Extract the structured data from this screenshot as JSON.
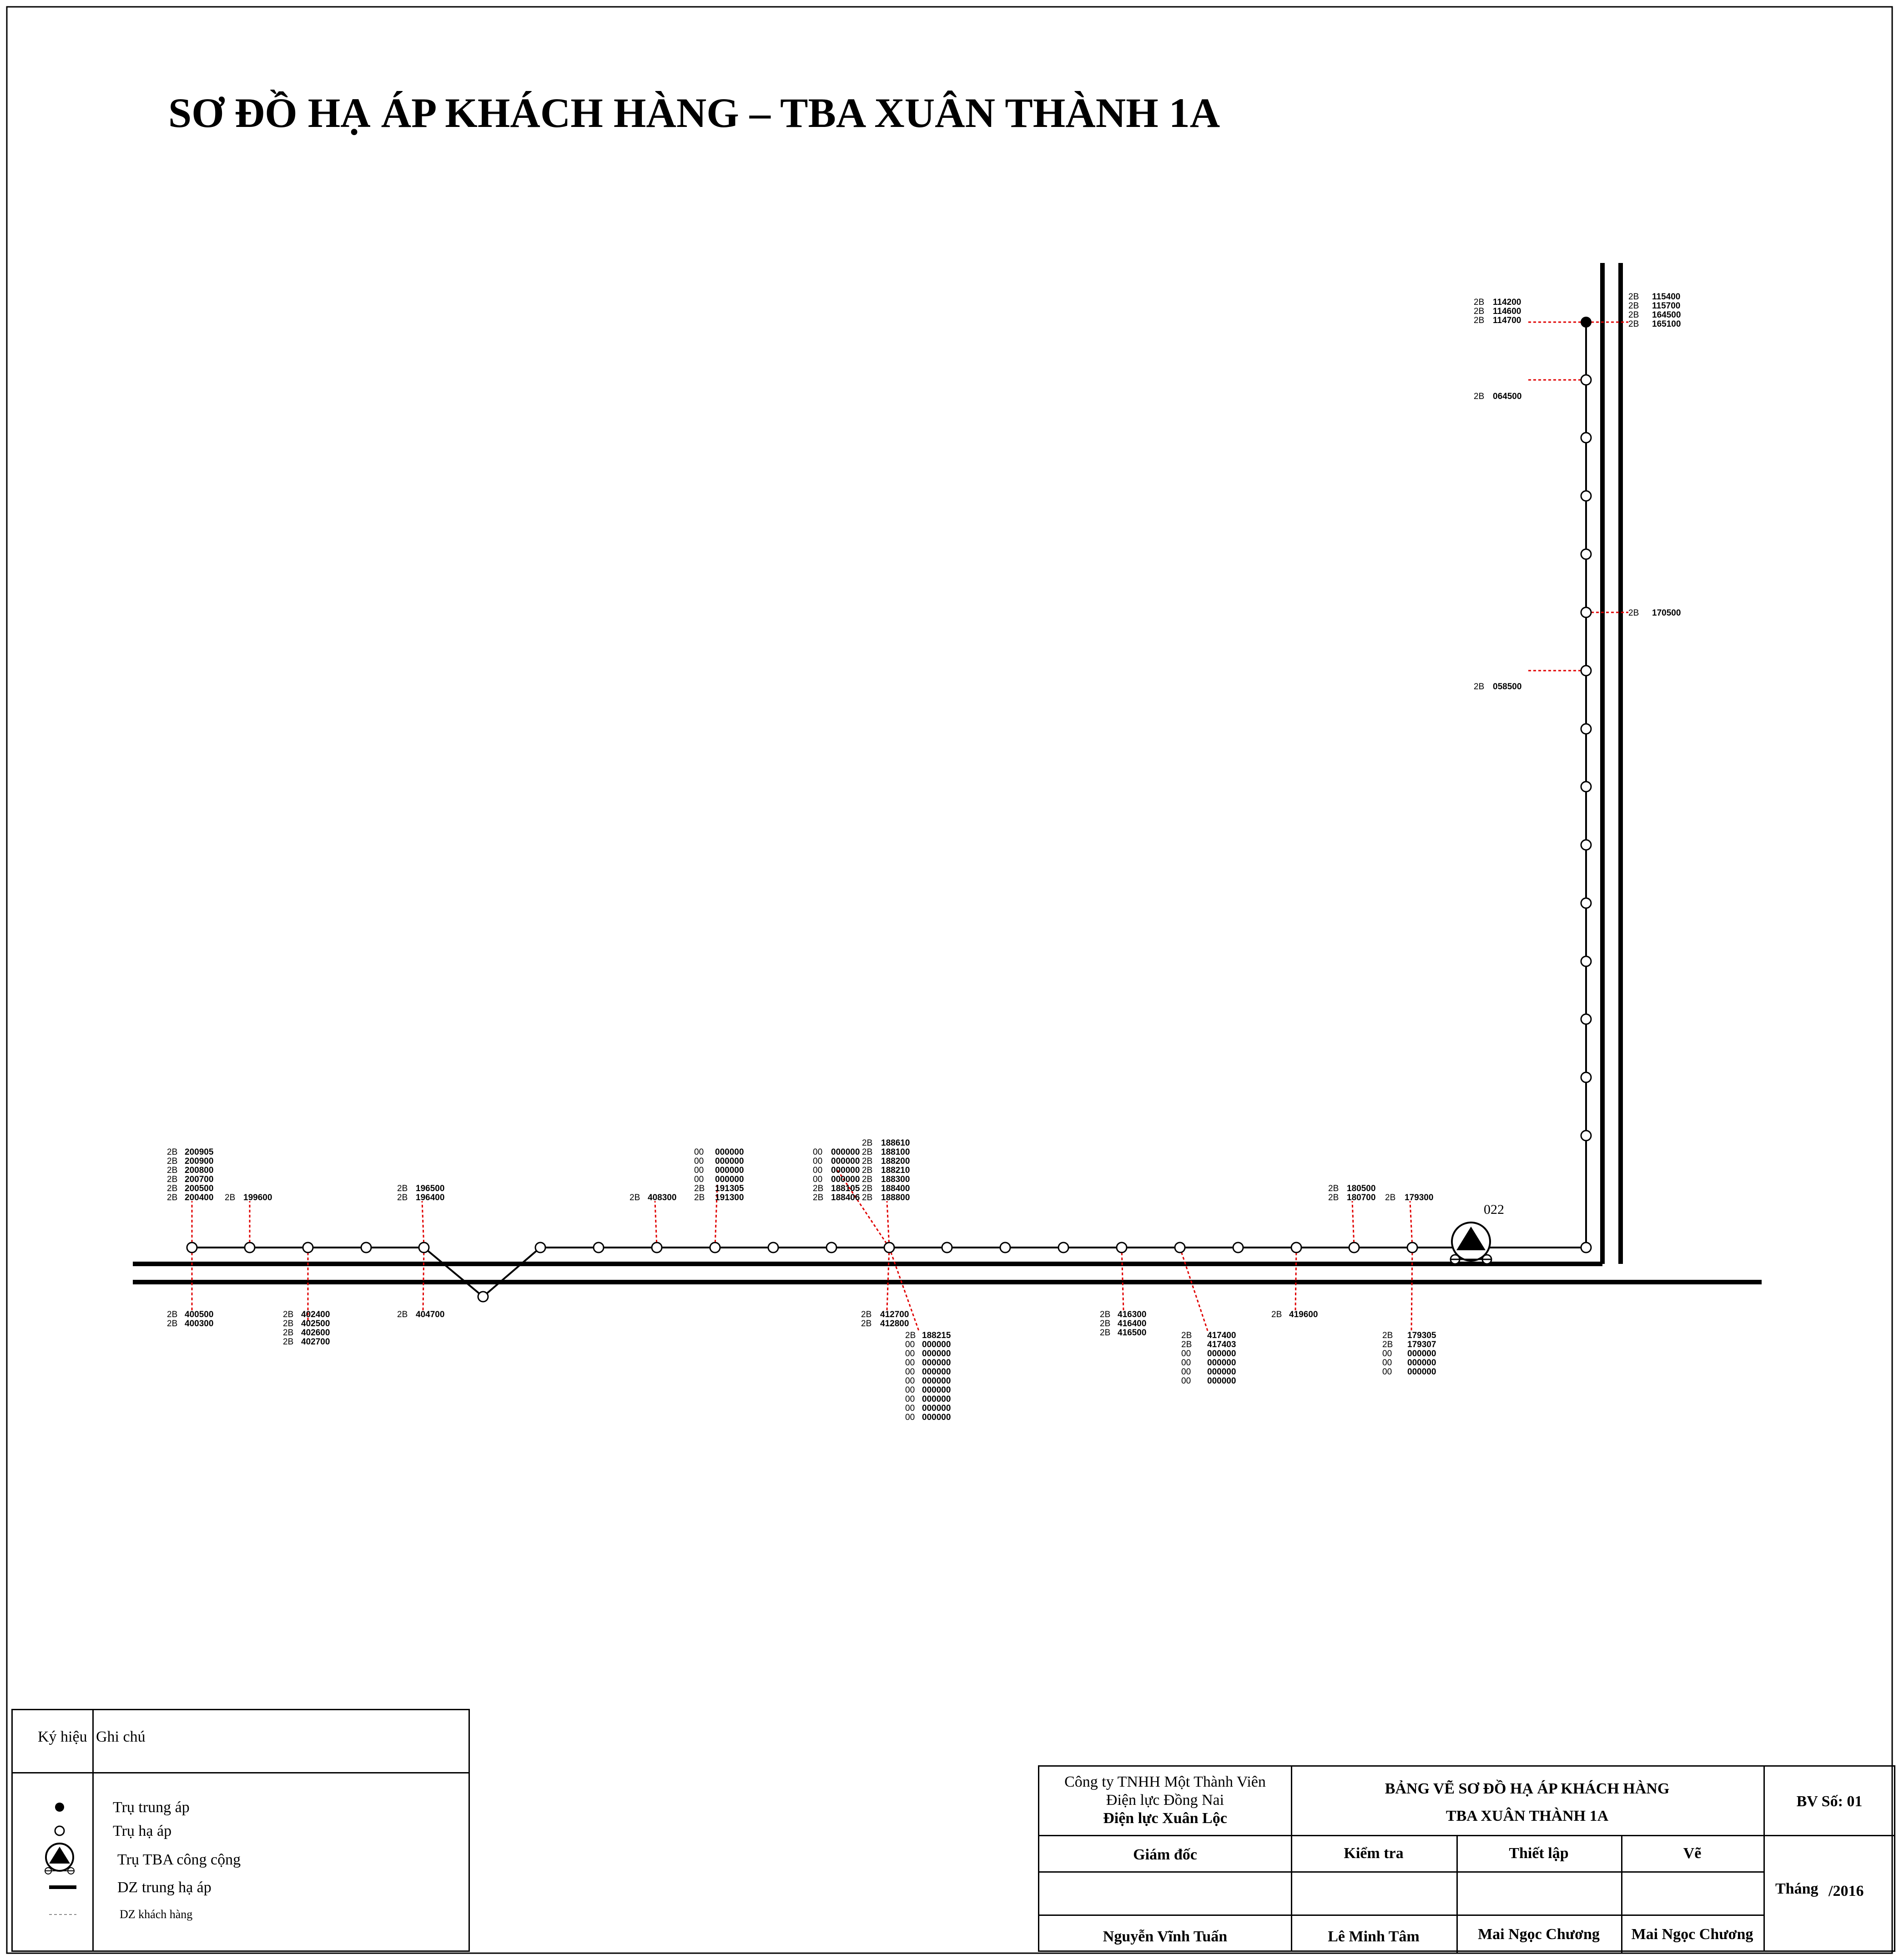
{
  "title": "SƠ ĐỒ HẠ ÁP KHÁCH HÀNG – TBA XUÂN THÀNH 1A",
  "substation_label": "022",
  "top_labels": [
    {
      "prefixes": [
        "2B",
        "2B",
        "2B",
        "2B",
        "2B",
        "2B"
      ],
      "codes": [
        "200905",
        "200900",
        "200800",
        "200700",
        "200500",
        "200400"
      ]
    },
    {
      "prefixes": [
        "2B"
      ],
      "codes": [
        "199600"
      ]
    },
    {
      "prefixes": [
        "2B",
        "2B"
      ],
      "codes": [
        "196500",
        "196400"
      ]
    },
    {
      "prefixes": [
        "2B"
      ],
      "codes": [
        "408300"
      ]
    },
    {
      "prefixes": [
        "00",
        "00",
        "00",
        "00",
        "2B",
        "2B"
      ],
      "codes": [
        "000000",
        "000000",
        "000000",
        "000000",
        "191305",
        "191300"
      ]
    },
    {
      "prefixes": [
        "00",
        "00",
        "00",
        "00",
        "2B",
        "2B"
      ],
      "codes": [
        "000000",
        "000000",
        "000000",
        "000000",
        "188105",
        "188406"
      ]
    },
    {
      "prefixes": [
        "2B",
        "2B",
        "2B",
        "2B",
        "2B",
        "2B",
        "2B"
      ],
      "codes": [
        "188610",
        "188100",
        "188200",
        "188210",
        "188300",
        "188400",
        "188800"
      ]
    },
    {
      "prefixes": [
        "2B",
        "2B"
      ],
      "codes": [
        "180500",
        "180700"
      ]
    },
    {
      "prefixes": [
        "2B"
      ],
      "codes": [
        "179300"
      ]
    }
  ],
  "bottom_labels": [
    {
      "prefixes": [
        "2B",
        "2B"
      ],
      "codes": [
        "400500",
        "400300"
      ]
    },
    {
      "prefixes": [
        "2B",
        "2B",
        "2B",
        "2B"
      ],
      "codes": [
        "402400",
        "402500",
        "402600",
        "402700"
      ]
    },
    {
      "prefixes": [
        "2B"
      ],
      "codes": [
        "404700"
      ]
    },
    {
      "prefixes": [
        "2B",
        "2B"
      ],
      "codes": [
        "412700",
        "412800"
      ]
    },
    {
      "prefixes": [
        "2B",
        "00",
        "00",
        "00",
        "00",
        "00",
        "00",
        "00",
        "00",
        "00"
      ],
      "codes": [
        "188215",
        "000000",
        "000000",
        "000000",
        "000000",
        "000000",
        "000000",
        "000000",
        "000000",
        "000000"
      ]
    },
    {
      "prefixes": [
        "2B",
        "2B",
        "2B"
      ],
      "codes": [
        "416300",
        "416400",
        "416500"
      ]
    },
    {
      "prefixes": [
        "2B",
        "2B",
        "00",
        "00",
        "00",
        "00"
      ],
      "codes": [
        "417400",
        "417403",
        "000000",
        "000000",
        "000000",
        "000000"
      ]
    },
    {
      "prefixes": [
        "2B"
      ],
      "codes": [
        "419600"
      ]
    },
    {
      "prefixes": [
        "2B",
        "2B",
        "00",
        "00",
        "00"
      ],
      "codes": [
        "179305",
        "179307",
        "000000",
        "000000",
        "000000"
      ]
    }
  ],
  "vertical_left_labels": [
    {
      "prefixes": [
        "2B",
        "2B",
        "2B"
      ],
      "codes": [
        "114200",
        "114600",
        "114700"
      ]
    },
    {
      "prefixes": [
        "2B"
      ],
      "codes": [
        "064500"
      ]
    },
    {
      "prefixes": [
        "2B"
      ],
      "codes": [
        "058500"
      ]
    }
  ],
  "vertical_right_labels": [
    {
      "prefixes": [
        "2B",
        "2B",
        "2B",
        "2B"
      ],
      "codes": [
        "115400",
        "115700",
        "164500",
        "165100"
      ]
    },
    {
      "prefixes": [
        "2B"
      ],
      "codes": [
        "170500"
      ]
    }
  ],
  "legend": {
    "col1": "Ký hiệu",
    "col2": "Ghi chú",
    "items": [
      "Trụ trung áp",
      "Trụ hạ áp",
      "Trụ TBA công cộng",
      "DZ trung hạ áp",
      "DZ khách hàng"
    ]
  },
  "title_block": {
    "company_line1": "Công ty TNHH Một Thành Viên",
    "company_line2": "Điện lực Đồng Nai",
    "company_line3": "Điện lực Xuân Lộc",
    "drawing_title1": "BẢNG VẼ SƠ ĐỒ HẠ ÁP KHÁCH HÀNG",
    "drawing_title2": "TBA XUÂN THÀNH 1A",
    "drawing_no": "BV Số: 01",
    "role_director": "Giám đốc",
    "role_check": "Kiểm tra",
    "role_setup": "Thiết lập",
    "role_draw": "Vẽ",
    "month_label": "Tháng",
    "year_label": "/2016",
    "name_director": "Nguyễn Vĩnh Tuấn",
    "name_check": "Lê Minh Tâm",
    "name_setup": "Mai Ngọc Chương",
    "name_draw": "Mai Ngọc Chương"
  },
  "colors": {
    "line": "#000000",
    "customer_line": "#e00000"
  }
}
